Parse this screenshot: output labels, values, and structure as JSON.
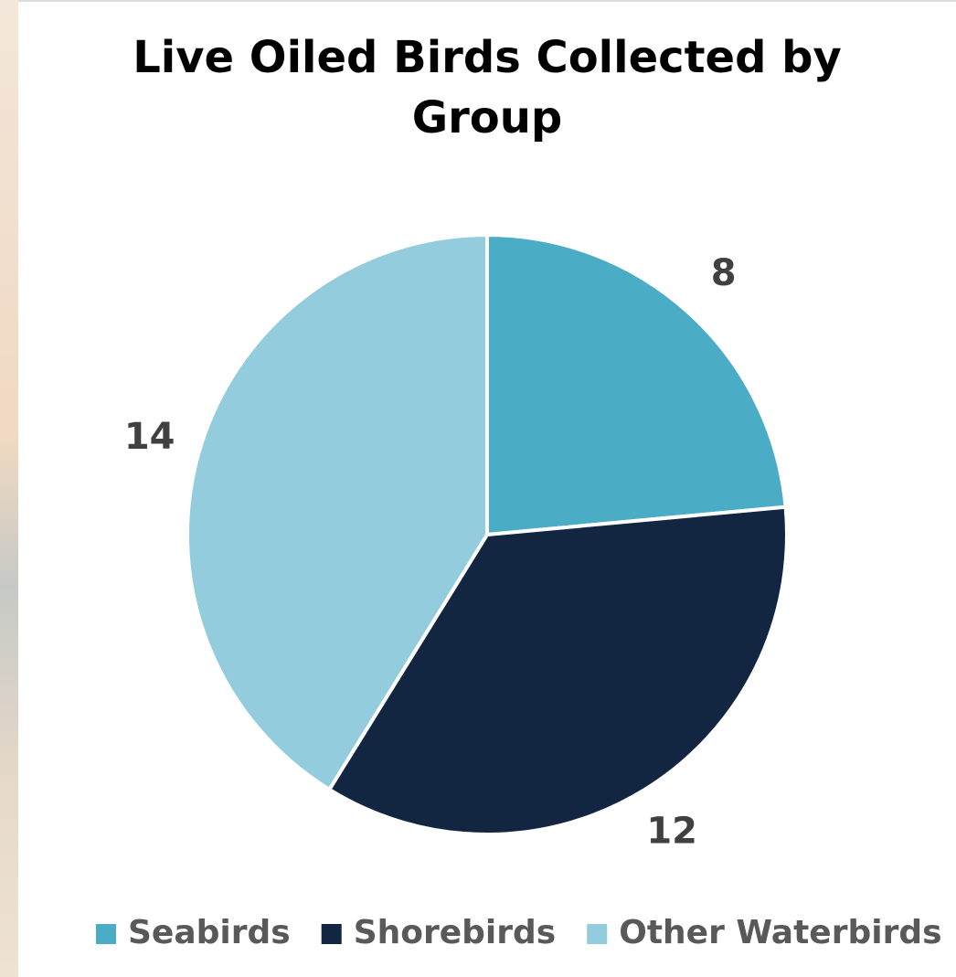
{
  "chart_data": {
    "type": "pie",
    "title": "Live Oiled Birds Collected by Group",
    "categories": [
      "Seabirds",
      "Shorebirds",
      "Other Waterbirds"
    ],
    "values": [
      8,
      12,
      14
    ],
    "colors": [
      "#4bacc6",
      "#132641",
      "#93cddd"
    ],
    "legend": "bottom"
  }
}
